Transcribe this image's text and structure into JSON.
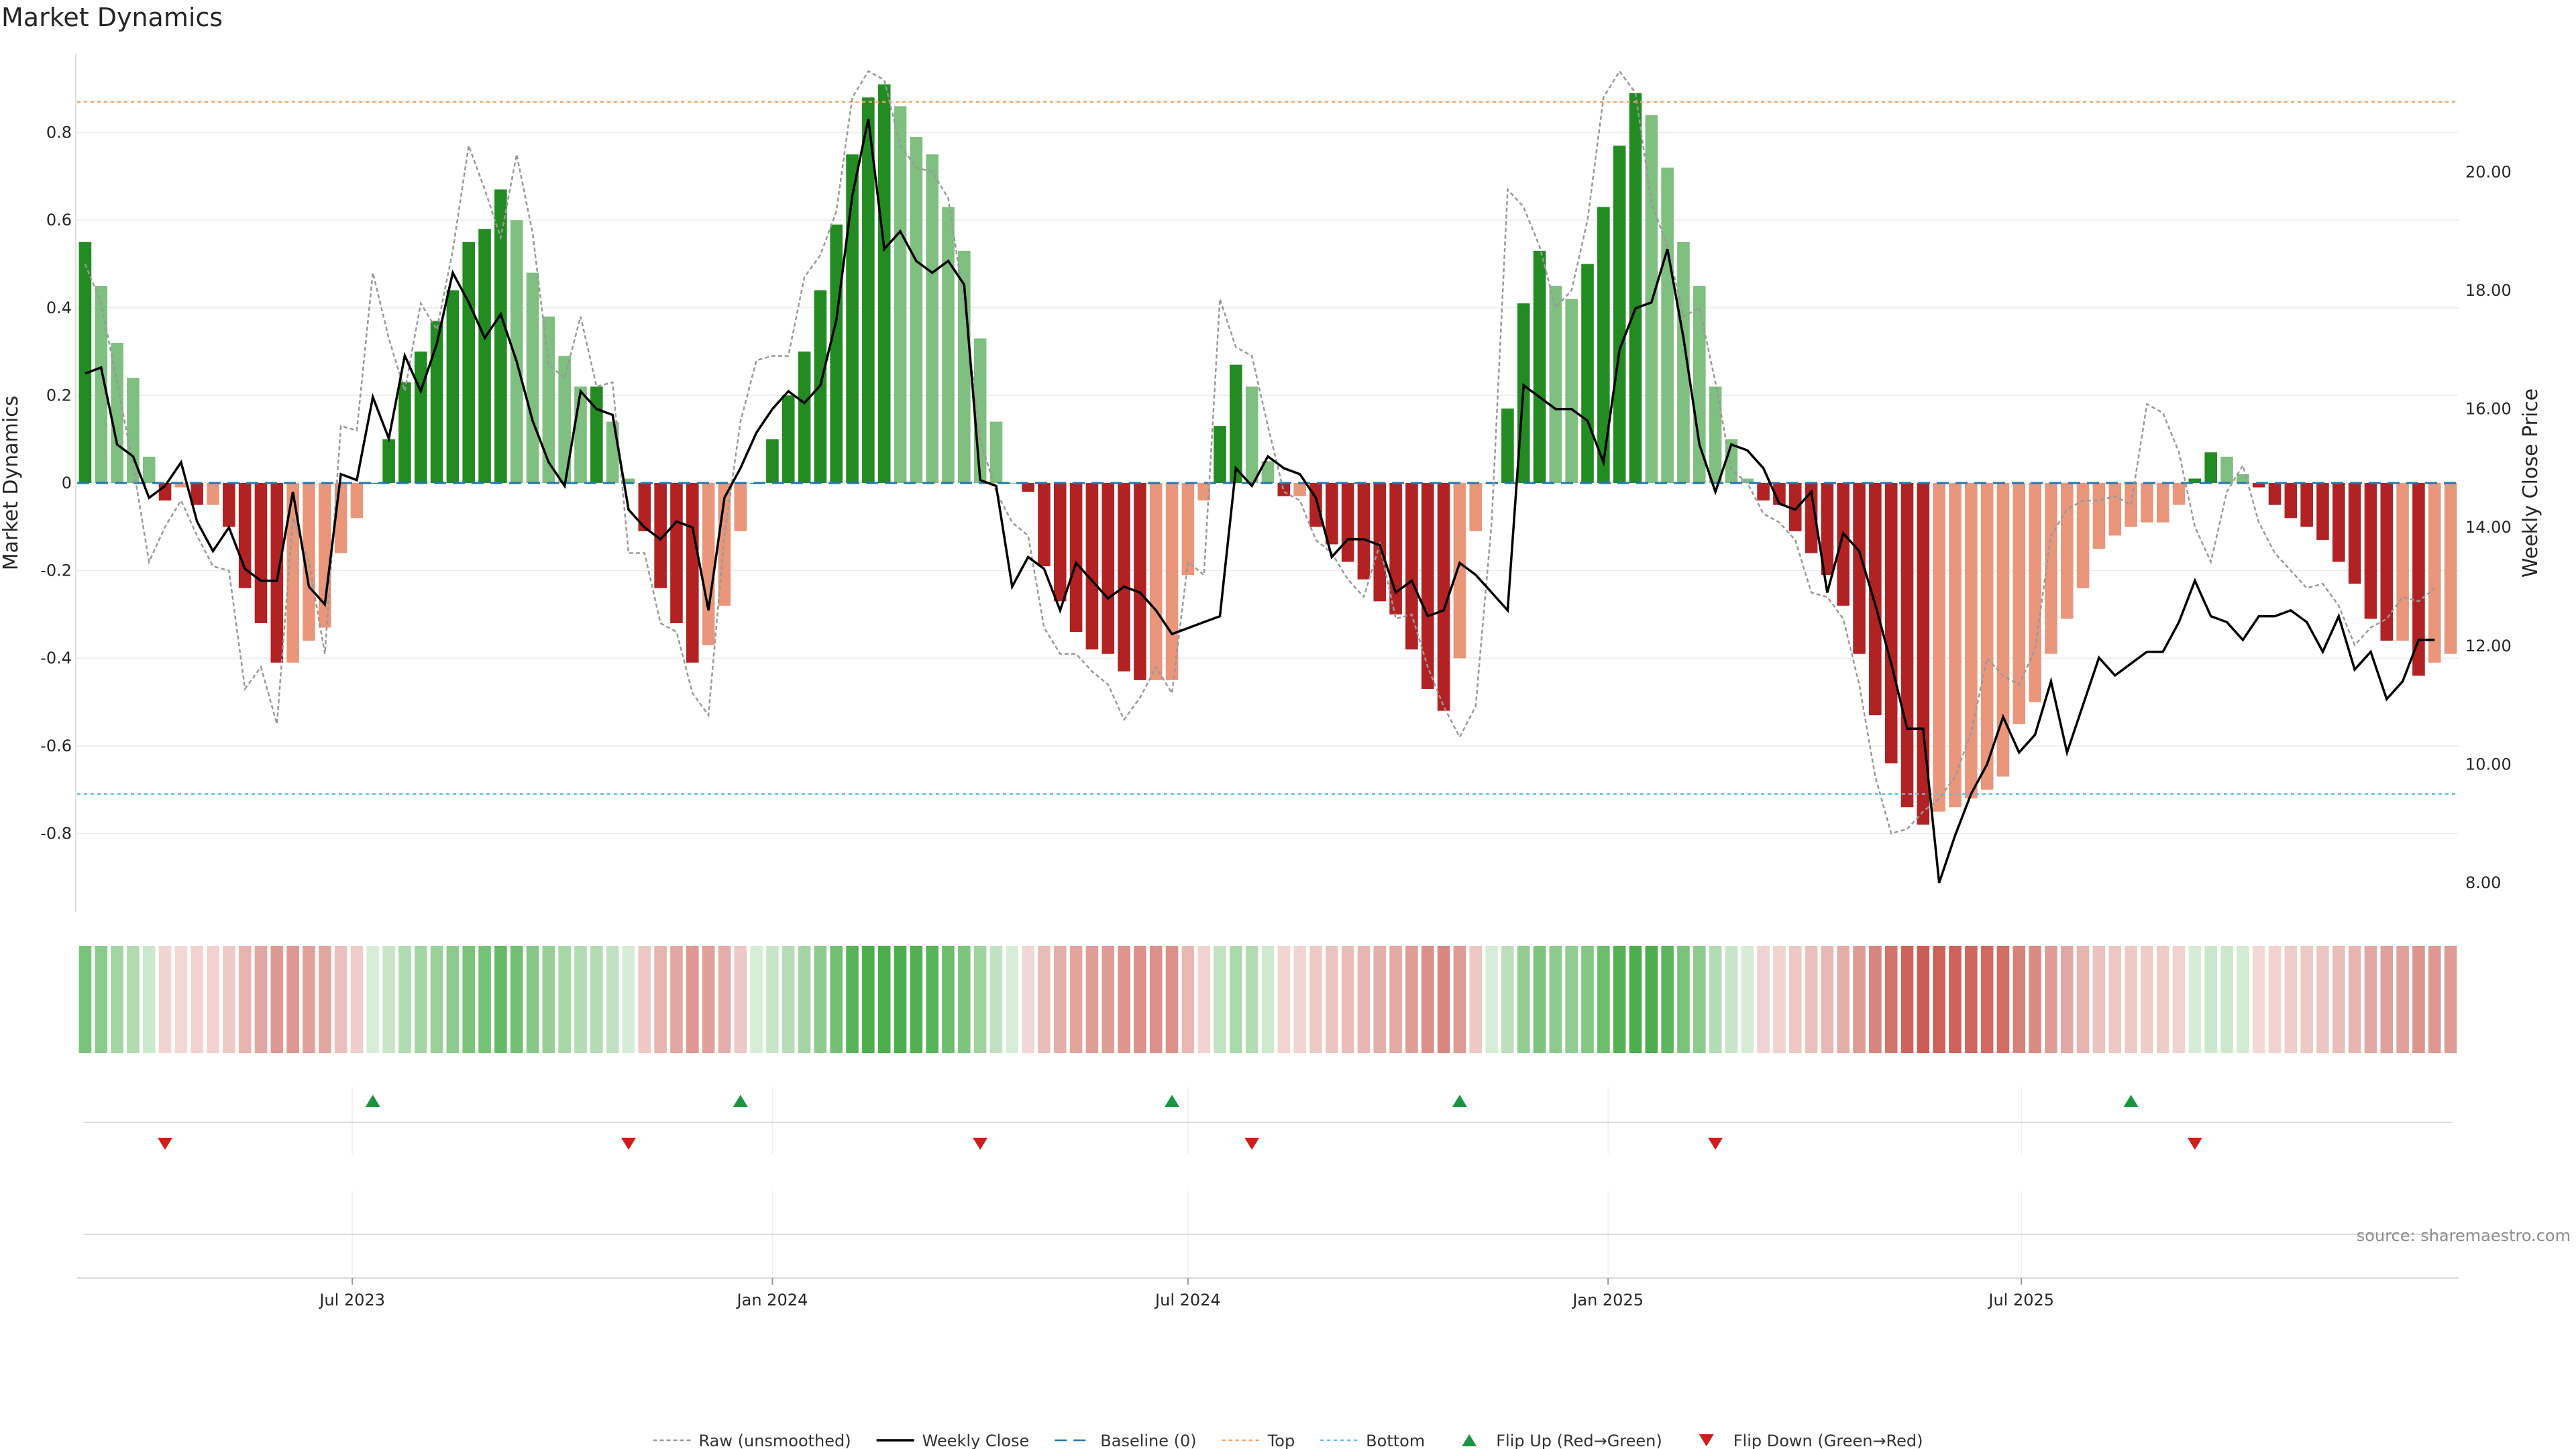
{
  "chart_data": {
    "type": "bar",
    "title": "Market Dynamics",
    "ylabel_left": "Market Dynamics",
    "ylabel_right": "Weekly Close Price",
    "ylim_left": [
      -0.98,
      0.98
    ],
    "ylim_right": [
      7.5,
      22.0
    ],
    "x_start": "2023-03-06",
    "x_step_days": 7,
    "x_ticks": [
      {
        "date": "2023-07-01",
        "label": "Jul 2023"
      },
      {
        "date": "2024-01-01",
        "label": "Jan 2024"
      },
      {
        "date": "2024-07-01",
        "label": "Jul 2024"
      },
      {
        "date": "2025-01-01",
        "label": "Jan 2025"
      },
      {
        "date": "2025-07-01",
        "label": "Jul 2025"
      }
    ],
    "y_ticks_left": [
      "-0.8",
      "-0.6",
      "-0.4",
      "-0.2",
      "0",
      "0.2",
      "0.4",
      "0.6",
      "0.8"
    ],
    "y_ticks_right": [
      "8.00",
      "10.00",
      "12.00",
      "14.00",
      "16.00",
      "18.00",
      "20.00"
    ],
    "top_level": 0.87,
    "bottom_level": -0.71,
    "baseline": 0,
    "grid": true,
    "legend_position": "bottom-center",
    "colors": {
      "green_strong": "#228b22",
      "green_light": "#7fbf7f",
      "red_strong": "#b22222",
      "red_light": "#e9967a",
      "raw": "#999999",
      "close": "#000000",
      "baseline": "#1f77b4",
      "top": "#f4a460",
      "bottom": "#5bc0de",
      "flip_up": "#1a9641",
      "flip_down": "#d7191c"
    },
    "series": [
      {
        "name": "Market Dynamics",
        "values": [
          0.55,
          0.45,
          0.32,
          0.24,
          0.06,
          -0.04,
          -0.01,
          -0.05,
          -0.05,
          -0.1,
          -0.24,
          -0.32,
          -0.41,
          -0.41,
          -0.36,
          -0.33,
          -0.16,
          -0.08,
          0,
          0.1,
          0.23,
          0.3,
          0.37,
          0.44,
          0.55,
          0.58,
          0.67,
          0.6,
          0.48,
          0.38,
          0.29,
          0.22,
          0.22,
          0.14,
          0.01,
          -0.11,
          -0.24,
          -0.32,
          -0.41,
          -0.37,
          -0.28,
          -0.11,
          0,
          0.1,
          0.2,
          0.3,
          0.44,
          0.59,
          0.75,
          0.88,
          0.91,
          0.86,
          0.79,
          0.75,
          0.63,
          0.53,
          0.33,
          0.14,
          0,
          -0.02,
          -0.19,
          -0.27,
          -0.34,
          -0.38,
          -0.39,
          -0.43,
          -0.45,
          -0.45,
          -0.45,
          -0.21,
          -0.04,
          0.13,
          0.27,
          0.22,
          0.05,
          -0.03,
          -0.03,
          -0.1,
          -0.14,
          -0.18,
          -0.22,
          -0.27,
          -0.3,
          -0.38,
          -0.47,
          -0.52,
          -0.4,
          -0.11,
          0,
          0.17,
          0.41,
          0.53,
          0.45,
          0.42,
          0.5,
          0.63,
          0.77,
          0.89,
          0.84,
          0.72,
          0.55,
          0.45,
          0.22,
          0.1,
          0.01,
          -0.04,
          -0.05,
          -0.11,
          -0.16,
          -0.21,
          -0.28,
          -0.39,
          -0.53,
          -0.64,
          -0.74,
          -0.78,
          -0.75,
          -0.74,
          -0.72,
          -0.7,
          -0.67,
          -0.55,
          -0.5,
          -0.39,
          -0.31,
          -0.24,
          -0.15,
          -0.12,
          -0.1,
          -0.09,
          -0.09,
          -0.05,
          0.01,
          0.07,
          0.06,
          0.02,
          -0.01,
          -0.05,
          -0.08,
          -0.1,
          -0.13,
          -0.18,
          -0.23,
          -0.31,
          -0.36,
          -0.36,
          -0.44,
          -0.41,
          -0.39
        ]
      },
      {
        "name": "Raw (unsmoothed)",
        "values": [
          0.5,
          0.41,
          0.23,
          0.04,
          -0.18,
          -0.1,
          -0.04,
          -0.12,
          -0.19,
          -0.2,
          -0.47,
          -0.42,
          -0.55,
          -0.08,
          -0.18,
          -0.39,
          0.13,
          0.12,
          0.48,
          0.33,
          0.21,
          0.41,
          0.35,
          0.53,
          0.77,
          0.67,
          0.56,
          0.75,
          0.57,
          0.27,
          0.24,
          0.38,
          0.22,
          0.23,
          -0.16,
          -0.16,
          -0.32,
          -0.34,
          -0.48,
          -0.53,
          -0.12,
          0.14,
          0.28,
          0.29,
          0.29,
          0.47,
          0.52,
          0.62,
          0.88,
          0.94,
          0.92,
          0.77,
          0.72,
          0.71,
          0.65,
          0.41,
          0.1,
          -0.02,
          -0.09,
          -0.12,
          -0.33,
          -0.39,
          -0.39,
          -0.43,
          -0.46,
          -0.54,
          -0.49,
          -0.42,
          -0.48,
          -0.18,
          -0.21,
          0.42,
          0.31,
          0.29,
          0.13,
          -0.02,
          -0.04,
          -0.13,
          -0.16,
          -0.22,
          -0.26,
          -0.14,
          -0.31,
          -0.3,
          -0.42,
          -0.51,
          -0.58,
          -0.51,
          -0.09,
          0.67,
          0.63,
          0.54,
          0.4,
          0.44,
          0.6,
          0.88,
          0.94,
          0.89,
          0.64,
          0.54,
          0.38,
          0.4,
          0.23,
          0.03,
          0,
          -0.07,
          -0.09,
          -0.13,
          -0.25,
          -0.26,
          -0.31,
          -0.46,
          -0.67,
          -0.8,
          -0.79,
          -0.75,
          -0.72,
          -0.67,
          -0.57,
          -0.4,
          -0.44,
          -0.46,
          -0.38,
          -0.12,
          -0.06,
          -0.04,
          -0.04,
          -0.03,
          -0.05,
          0.18,
          0.16,
          0.07,
          -0.1,
          -0.18,
          -0.02,
          0.04,
          -0.09,
          -0.16,
          -0.2,
          -0.24,
          -0.23,
          -0.28,
          -0.37,
          -0.33,
          -0.31,
          -0.26,
          -0.27,
          -0.24
        ]
      },
      {
        "name": "Weekly Close",
        "values": [
          16.6,
          16.7,
          15.4,
          15.2,
          14.5,
          14.7,
          15.1,
          14.1,
          13.6,
          14.0,
          13.3,
          13.1,
          13.1,
          14.6,
          13.0,
          12.7,
          14.9,
          14.8,
          16.2,
          15.5,
          16.9,
          16.3,
          17.1,
          18.3,
          17.8,
          17.2,
          17.6,
          16.8,
          15.8,
          15.1,
          14.7,
          16.3,
          16.0,
          15.9,
          14.3,
          14.0,
          13.8,
          14.1,
          14.0,
          12.6,
          14.5,
          15.0,
          15.6,
          16.0,
          16.3,
          16.1,
          16.4,
          17.5,
          19.6,
          20.9,
          18.7,
          19.0,
          18.5,
          18.3,
          18.5,
          18.1,
          14.8,
          14.7,
          13.0,
          13.5,
          13.3,
          12.6,
          13.4,
          13.1,
          12.8,
          13.0,
          12.9,
          12.6,
          12.2,
          12.3,
          12.4,
          12.5,
          15.0,
          14.7,
          15.2,
          15.0,
          14.9,
          14.5,
          13.5,
          13.8,
          13.8,
          13.7,
          12.9,
          13.1,
          12.5,
          12.6,
          13.4,
          13.2,
          12.9,
          12.6,
          16.4,
          16.2,
          16.0,
          16.0,
          15.8,
          15.1,
          17.0,
          17.7,
          17.8,
          18.7,
          17.2,
          15.4,
          14.6,
          15.4,
          15.3,
          15.0,
          14.4,
          14.3,
          14.6,
          12.9,
          13.9,
          13.6,
          12.7,
          11.7,
          10.6,
          10.6,
          8.0,
          8.8,
          9.5,
          10.0,
          10.8,
          10.2,
          10.5,
          11.4,
          10.2,
          11.0,
          11.8,
          11.5,
          11.7,
          11.9,
          11.9,
          12.4,
          13.1,
          12.5,
          12.4,
          12.1,
          12.5,
          12.5,
          12.6,
          12.4,
          11.9,
          12.5,
          11.6,
          11.9,
          11.1,
          11.4,
          12.1,
          12.1
        ]
      }
    ],
    "flip_up_weeks": [
      18,
      41,
      68,
      86,
      128
    ],
    "flip_down_weeks": [
      5,
      34,
      56,
      73,
      102,
      132
    ],
    "legend": [
      {
        "key": "raw",
        "label": "Raw (unsmoothed)"
      },
      {
        "key": "close",
        "label": "Weekly Close"
      },
      {
        "key": "baseline",
        "label": "Baseline (0)"
      },
      {
        "key": "top",
        "label": "Top"
      },
      {
        "key": "bottom",
        "label": "Bottom"
      },
      {
        "key": "flip_up",
        "label": "Flip Up (Red→Green)"
      },
      {
        "key": "flip_down",
        "label": "Flip Down (Green→Red)"
      }
    ],
    "source": "source: sharemaestro.com"
  }
}
